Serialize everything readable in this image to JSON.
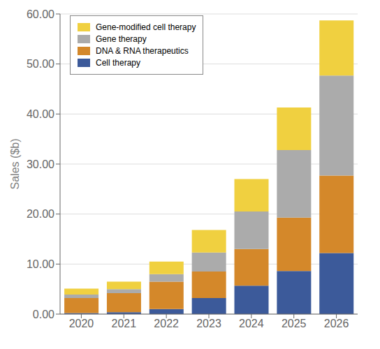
{
  "chart_data": {
    "type": "bar",
    "stacked": true,
    "categories": [
      "2020",
      "2021",
      "2022",
      "2023",
      "2024",
      "2025",
      "2026"
    ],
    "series": [
      {
        "name": "Cell therapy",
        "color": "#3C5A9A",
        "values": [
          0.2,
          0.4,
          1.0,
          3.2,
          5.7,
          8.6,
          12.2
        ]
      },
      {
        "name": "DNA & RNA therapeutics",
        "color": "#D4882A",
        "values": [
          3.0,
          3.8,
          5.5,
          5.3,
          7.3,
          10.7,
          15.5
        ]
      },
      {
        "name": "Gene therapy",
        "color": "#ABABAB",
        "values": [
          0.7,
          0.8,
          1.5,
          3.8,
          7.5,
          13.5,
          20.0
        ]
      },
      {
        "name": "Gene-modified cell therapy",
        "color": "#F0D040",
        "values": [
          1.2,
          1.5,
          2.5,
          4.5,
          6.5,
          8.5,
          11.0
        ]
      }
    ],
    "y_label": "Sales ($b)",
    "ylim": [
      0,
      60
    ],
    "yticks": [
      {
        "value": 0,
        "label": "0.00"
      },
      {
        "value": 10,
        "label": "10.00"
      },
      {
        "value": 20,
        "label": "20.00"
      },
      {
        "value": 30,
        "label": "30.00"
      },
      {
        "value": 40,
        "label": "40.00"
      },
      {
        "value": 50,
        "label": "50.00"
      },
      {
        "value": 60,
        "label": "60.00"
      }
    ],
    "grid": true,
    "legend": "upper left"
  }
}
